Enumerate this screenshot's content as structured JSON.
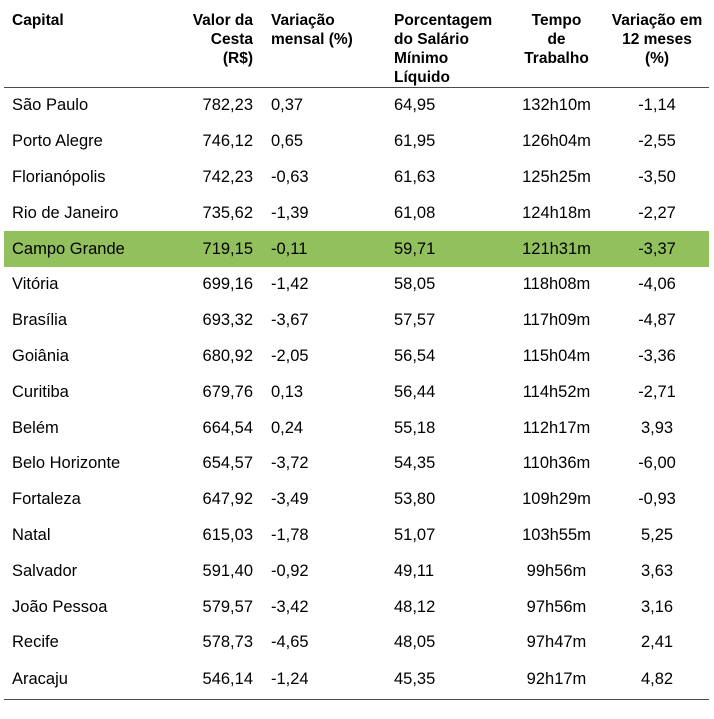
{
  "table": {
    "headers": {
      "capital": "Capital",
      "valor": [
        "Valor da",
        "Cesta",
        "(R$)"
      ],
      "var": [
        "Variação",
        "mensal (%)"
      ],
      "pct": [
        "Porcentagem",
        "do Salário",
        "Mínimo",
        "Líquido"
      ],
      "tempo": [
        "Tempo",
        "de",
        "Trabalho"
      ],
      "var12": [
        "Variação em",
        "12 meses",
        "(%)"
      ]
    },
    "highlight_color": "#92c05c",
    "highlight_row": "Campo Grande",
    "rows": [
      [
        "São Paulo",
        "782,23",
        "0,37",
        "64,95",
        "132h10m",
        "-1,14"
      ],
      [
        "Porto Alegre",
        "746,12",
        "0,65",
        "61,95",
        "126h04m",
        "-2,55"
      ],
      [
        "Florianópolis",
        "742,23",
        "-0,63",
        "61,63",
        "125h25m",
        "-3,50"
      ],
      [
        "Rio de Janeiro",
        "735,62",
        "-1,39",
        "61,08",
        "124h18m",
        "-2,27"
      ],
      [
        "Campo Grande",
        "719,15",
        "-0,11",
        "59,71",
        "121h31m",
        "-3,37"
      ],
      [
        "Vitória",
        "699,16",
        "-1,42",
        "58,05",
        "118h08m",
        "-4,06"
      ],
      [
        "Brasília",
        "693,32",
        "-3,67",
        "57,57",
        "117h09m",
        "-4,87"
      ],
      [
        "Goiânia",
        "680,92",
        "-2,05",
        "56,54",
        "115h04m",
        "-3,36"
      ],
      [
        "Curitiba",
        "679,76",
        "0,13",
        "56,44",
        "114h52m",
        "-2,71"
      ],
      [
        "Belém",
        "664,54",
        "0,24",
        "55,18",
        "112h17m",
        "3,93"
      ],
      [
        "Belo Horizonte",
        "654,57",
        "-3,72",
        "54,35",
        "110h36m",
        "-6,00"
      ],
      [
        "Fortaleza",
        "647,92",
        "-3,49",
        "53,80",
        "109h29m",
        "-0,93"
      ],
      [
        "Natal",
        "615,03",
        "-1,78",
        "51,07",
        "103h55m",
        "5,25"
      ],
      [
        "Salvador",
        "591,40",
        "-0,92",
        "49,11",
        "99h56m",
        "3,63"
      ],
      [
        "João Pessoa",
        "579,57",
        "-3,42",
        "48,12",
        "97h56m",
        "3,16"
      ],
      [
        "Recife",
        "578,73",
        "-4,65",
        "48,05",
        "97h47m",
        "2,41"
      ],
      [
        "Aracaju",
        "546,14",
        "-1,24",
        "45,35",
        "92h17m",
        "4,82"
      ]
    ]
  }
}
